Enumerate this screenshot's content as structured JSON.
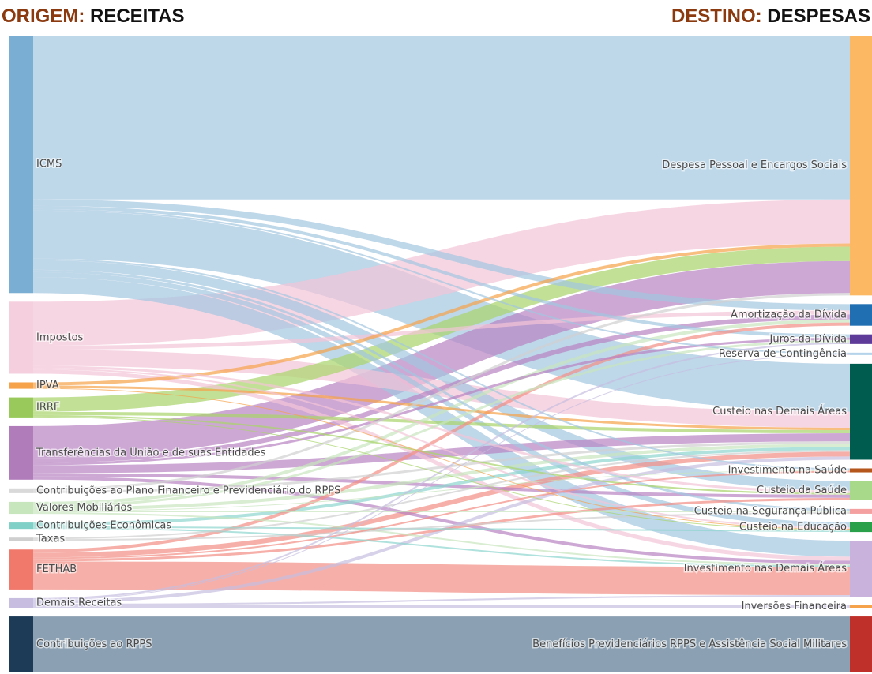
{
  "chart_data": {
    "type": "sankey",
    "title_left_prefix": "ORIGEM:",
    "title_left": "RECEITAS",
    "title_right_prefix": "DESTINO:",
    "title_right": "DESPESAS",
    "sources": [
      {
        "name": "ICMS",
        "color": "#7aaed3",
        "link_color": "#a3c6e0"
      },
      {
        "name": "Impostos",
        "color": "#f6cfdf",
        "link_color": "#f4c4d7"
      },
      {
        "name": "IPVA",
        "color": "#f5a24a",
        "link_color": "#f5a24a"
      },
      {
        "name": "IRRF",
        "color": "#98c95a",
        "link_color": "#a8d46a"
      },
      {
        "name": "Transferências da União e de suas Entidades",
        "color": "#b07cba",
        "link_color": "#b883c2"
      },
      {
        "name": "Contribuições ao Plano Financeiro e Previdenciário do RPPS",
        "color": "#d9d9d9",
        "link_color": "#d0d0d0"
      },
      {
        "name": "Valores Mobiliários",
        "color": "#c8e6bd",
        "link_color": "#c8e6bd"
      },
      {
        "name": "Contribuições Econômicas",
        "color": "#7fd1c8",
        "link_color": "#8fd6ce"
      },
      {
        "name": "Taxas",
        "color": "#cfcfcf",
        "link_color": "#cfcfcf"
      },
      {
        "name": "FETHAB",
        "color": "#f0796c",
        "link_color": "#f28f84"
      },
      {
        "name": "Demais Receitas",
        "color": "#c6bde0",
        "link_color": "#c6bde0"
      },
      {
        "name": "Contribuições ao RPPS",
        "color": "#1d3a56",
        "link_color": "#5a7892"
      }
    ],
    "targets": [
      {
        "name": "Despesa Pessoal e Encargos Sociais",
        "color": "#fdb863"
      },
      {
        "name": "Amortização da Dívida",
        "color": "#1f6fb2"
      },
      {
        "name": "Juros da Dívida",
        "color": "#5e3a99"
      },
      {
        "name": "Reserva de Contingência",
        "color": "#b5d3ea"
      },
      {
        "name": "Custeio nas Demais Áreas",
        "color": "#005c4f"
      },
      {
        "name": "Investimento na Saúde",
        "color": "#b5561d"
      },
      {
        "name": "Custeio da Saúde",
        "color": "#a8d88a"
      },
      {
        "name": "Custeio na Segurança Pública",
        "color": "#f4a0a0"
      },
      {
        "name": "Custeio na Educação",
        "color": "#2aa04a"
      },
      {
        "name": "Investimento nas Demais Áreas",
        "color": "#c9b3dd"
      },
      {
        "name": "Inversões Financeira",
        "color": "#f5a24a"
      },
      {
        "name": "Benefícios Previdenciários RPPS e Assistência Social Militares",
        "color": "#c0302a"
      }
    ],
    "links": [
      {
        "source": 0,
        "target": 0,
        "value": 205
      },
      {
        "source": 0,
        "target": 1,
        "value": 8
      },
      {
        "source": 0,
        "target": 2,
        "value": 4
      },
      {
        "source": 0,
        "target": 3,
        "value": 2
      },
      {
        "source": 0,
        "target": 4,
        "value": 60
      },
      {
        "source": 0,
        "target": 5,
        "value": 2
      },
      {
        "source": 0,
        "target": 6,
        "value": 12
      },
      {
        "source": 0,
        "target": 7,
        "value": 3
      },
      {
        "source": 0,
        "target": 8,
        "value": 6
      },
      {
        "source": 0,
        "target": 9,
        "value": 20
      },
      {
        "source": 1,
        "target": 0,
        "value": 55
      },
      {
        "source": 1,
        "target": 1,
        "value": 5
      },
      {
        "source": 1,
        "target": 4,
        "value": 20
      },
      {
        "source": 1,
        "target": 6,
        "value": 3
      },
      {
        "source": 1,
        "target": 8,
        "value": 2
      },
      {
        "source": 1,
        "target": 9,
        "value": 5
      },
      {
        "source": 2,
        "target": 0,
        "value": 4
      },
      {
        "source": 2,
        "target": 4,
        "value": 3
      },
      {
        "source": 2,
        "target": 8,
        "value": 1
      },
      {
        "source": 3,
        "target": 0,
        "value": 18
      },
      {
        "source": 3,
        "target": 4,
        "value": 4
      },
      {
        "source": 3,
        "target": 6,
        "value": 2
      },
      {
        "source": 3,
        "target": 8,
        "value": 1
      },
      {
        "source": 4,
        "target": 0,
        "value": 40
      },
      {
        "source": 4,
        "target": 1,
        "value": 6
      },
      {
        "source": 4,
        "target": 2,
        "value": 3
      },
      {
        "source": 4,
        "target": 4,
        "value": 10
      },
      {
        "source": 4,
        "target": 6,
        "value": 4
      },
      {
        "source": 4,
        "target": 9,
        "value": 4
      },
      {
        "source": 5,
        "target": 0,
        "value": 3
      },
      {
        "source": 5,
        "target": 4,
        "value": 3
      },
      {
        "source": 6,
        "target": 1,
        "value": 4
      },
      {
        "source": 6,
        "target": 2,
        "value": 3
      },
      {
        "source": 6,
        "target": 4,
        "value": 4
      },
      {
        "source": 6,
        "target": 5,
        "value": 1
      },
      {
        "source": 6,
        "target": 7,
        "value": 1
      },
      {
        "source": 6,
        "target": 9,
        "value": 2
      },
      {
        "source": 7,
        "target": 4,
        "value": 4
      },
      {
        "source": 7,
        "target": 8,
        "value": 2
      },
      {
        "source": 7,
        "target": 9,
        "value": 2
      },
      {
        "source": 8,
        "target": 4,
        "value": 2
      },
      {
        "source": 8,
        "target": 7,
        "value": 2
      },
      {
        "source": 9,
        "target": 1,
        "value": 4
      },
      {
        "source": 9,
        "target": 4,
        "value": 6
      },
      {
        "source": 9,
        "target": 5,
        "value": 2
      },
      {
        "source": 9,
        "target": 6,
        "value": 3
      },
      {
        "source": 9,
        "target": 9,
        "value": 35
      },
      {
        "source": 10,
        "target": 2,
        "value": 2
      },
      {
        "source": 10,
        "target": 3,
        "value": 1
      },
      {
        "source": 10,
        "target": 4,
        "value": 4
      },
      {
        "source": 10,
        "target": 9,
        "value": 2
      },
      {
        "source": 10,
        "target": 10,
        "value": 3
      },
      {
        "source": 11,
        "target": 11,
        "value": 70
      }
    ]
  }
}
